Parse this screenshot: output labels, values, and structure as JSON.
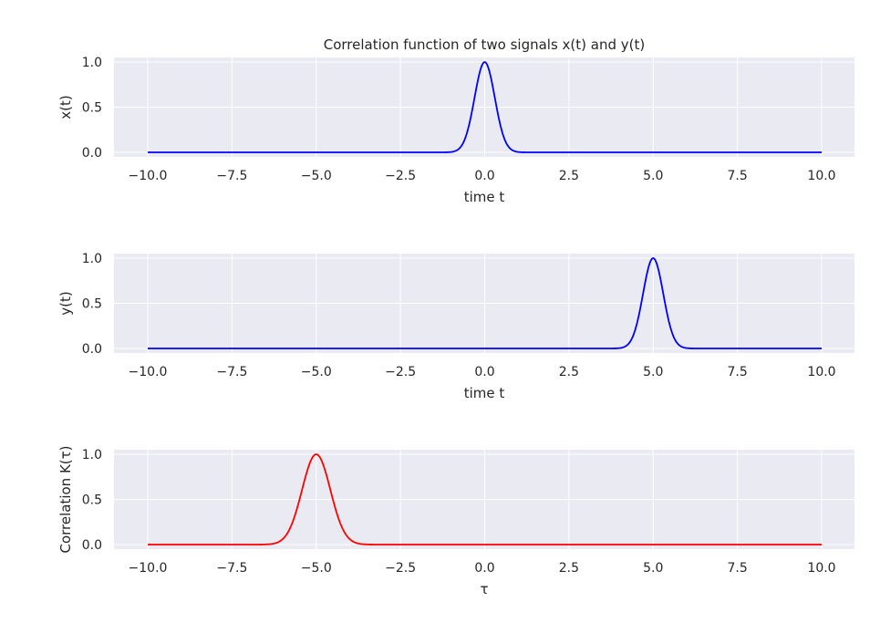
{
  "chart_data": [
    {
      "type": "line",
      "title": "Correlation function of two signals x(t) and y(t)",
      "xlabel": "time t",
      "ylabel": "x(t)",
      "xlim": [
        -10,
        10
      ],
      "ylim": [
        0,
        1
      ],
      "xticks": [
        "−10.0",
        "−7.5",
        "−5.0",
        "−2.5",
        "0.0",
        "2.5",
        "5.0",
        "7.5",
        "10.0"
      ],
      "yticks": [
        "0.0",
        "0.5",
        "1.0"
      ],
      "grid": true,
      "series": [
        {
          "color": "#0000ff",
          "center": 0,
          "peak": 1.0,
          "sigma": 0.3,
          "x": [
            -10,
            -1.5,
            -1,
            -0.75,
            -0.5,
            -0.25,
            0,
            0.25,
            0.5,
            0.75,
            1,
            1.5,
            10
          ],
          "y": [
            0,
            0,
            0.004,
            0.044,
            0.249,
            0.707,
            1,
            0.707,
            0.249,
            0.044,
            0.004,
            0,
            0
          ]
        }
      ]
    },
    {
      "type": "line",
      "title": "",
      "xlabel": "time t",
      "ylabel": "y(t)",
      "xlim": [
        -10,
        10
      ],
      "ylim": [
        0,
        1
      ],
      "xticks": [
        "−10.0",
        "−7.5",
        "−5.0",
        "−2.5",
        "0.0",
        "2.5",
        "5.0",
        "7.5",
        "10.0"
      ],
      "yticks": [
        "0.0",
        "0.5",
        "1.0"
      ],
      "grid": true,
      "series": [
        {
          "color": "#0000ff",
          "center": 5,
          "peak": 1.0,
          "sigma": 0.3,
          "x": [
            -10,
            3.5,
            4,
            4.25,
            4.5,
            4.75,
            5,
            5.25,
            5.5,
            5.75,
            6,
            6.5,
            10
          ],
          "y": [
            0,
            0,
            0.004,
            0.044,
            0.249,
            0.707,
            1,
            0.707,
            0.249,
            0.044,
            0.004,
            0,
            0
          ]
        }
      ]
    },
    {
      "type": "line",
      "title": "",
      "xlabel": "τ",
      "ylabel": "Correlation K(τ)",
      "xlim": [
        -10,
        10
      ],
      "ylim": [
        0,
        1
      ],
      "xticks": [
        "−10.0",
        "−7.5",
        "−5.0",
        "−2.5",
        "0.0",
        "2.5",
        "5.0",
        "7.5",
        "10.0"
      ],
      "yticks": [
        "0.0",
        "0.5",
        "1.0"
      ],
      "grid": true,
      "series": [
        {
          "color": "#ff0000",
          "center": -5,
          "peak": 1.0,
          "sigma": 0.42,
          "x": [
            -10,
            -6.5,
            -6,
            -5.5,
            -5.25,
            -5,
            -4.75,
            -4.5,
            -4,
            -3.5,
            10
          ],
          "y": [
            0,
            0.002,
            0.06,
            0.49,
            0.84,
            1,
            0.84,
            0.49,
            0.06,
            0.002,
            0
          ]
        }
      ]
    }
  ]
}
